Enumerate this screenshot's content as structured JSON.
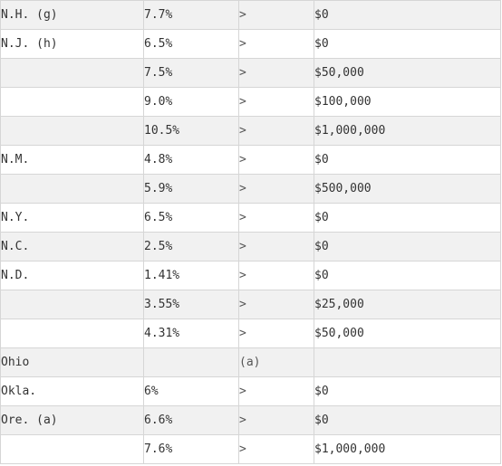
{
  "rows": [
    {
      "state": "N.H. (g)",
      "rate": "7.7%",
      "comparison": ">",
      "bracket": "$0"
    },
    {
      "state": "N.J. (h)",
      "rate": "6.5%",
      "comparison": ">",
      "bracket": "$0"
    },
    {
      "state": "",
      "rate": "7.5%",
      "comparison": ">",
      "bracket": "$50,000"
    },
    {
      "state": "",
      "rate": "9.0%",
      "comparison": ">",
      "bracket": "$100,000"
    },
    {
      "state": "",
      "rate": "10.5%",
      "comparison": ">",
      "bracket": "$1,000,000"
    },
    {
      "state": "N.M.",
      "rate": "4.8%",
      "comparison": ">",
      "bracket": "$0"
    },
    {
      "state": "",
      "rate": "5.9%",
      "comparison": ">",
      "bracket": "$500,000"
    },
    {
      "state": "N.Y.",
      "rate": "6.5%",
      "comparison": ">",
      "bracket": "$0"
    },
    {
      "state": "N.C.",
      "rate": "2.5%",
      "comparison": ">",
      "bracket": "$0"
    },
    {
      "state": "N.D.",
      "rate": "1.41%",
      "comparison": ">",
      "bracket": "$0"
    },
    {
      "state": "",
      "rate": "3.55%",
      "comparison": ">",
      "bracket": "$25,000"
    },
    {
      "state": "",
      "rate": "4.31%",
      "comparison": ">",
      "bracket": "$50,000"
    },
    {
      "state": "Ohio",
      "rate": "",
      "comparison": "(a)",
      "bracket": ""
    },
    {
      "state": "Okla.",
      "rate": "6%",
      "comparison": ">",
      "bracket": "$0"
    },
    {
      "state": "Ore. (a)",
      "rate": "6.6%",
      "comparison": ">",
      "bracket": "$0"
    },
    {
      "state": "",
      "rate": "7.6%",
      "comparison": ">",
      "bracket": "$1,000,000"
    }
  ]
}
